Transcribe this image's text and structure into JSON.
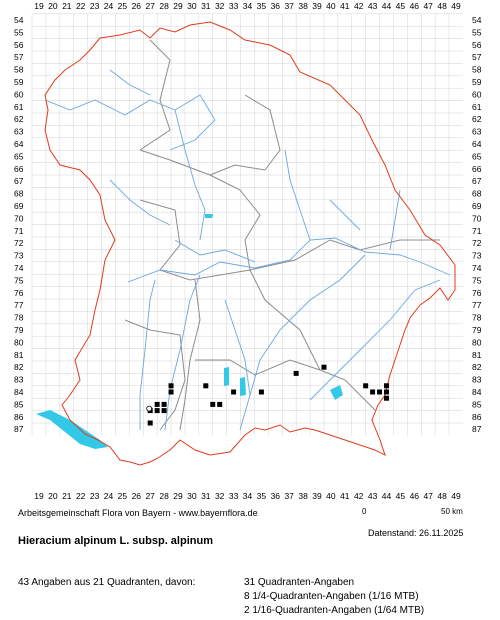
{
  "grid": {
    "top_labels": [
      "19",
      "20",
      "21",
      "22",
      "23",
      "24",
      "25",
      "26",
      "27",
      "28",
      "29",
      "30",
      "31",
      "32",
      "33",
      "34",
      "35",
      "36",
      "37",
      "38",
      "39",
      "40",
      "41",
      "42",
      "43",
      "44",
      "45",
      "46",
      "47",
      "48",
      "49"
    ],
    "left_labels": [
      "54",
      "55",
      "56",
      "57",
      "58",
      "59",
      "60",
      "61",
      "62",
      "63",
      "64",
      "65",
      "66",
      "67",
      "68",
      "69",
      "70",
      "71",
      "72",
      "73",
      "74",
      "75",
      "76",
      "77",
      "78",
      "79",
      "80",
      "81",
      "82",
      "83",
      "84",
      "85",
      "86",
      "87"
    ]
  },
  "colors": {
    "border": "#e03b1e",
    "districts": "#8c8c8c",
    "rivers": "#6aa7e0",
    "lakes": "#34c8e8",
    "grid": "#c8c8c8",
    "record": "#000000"
  },
  "records": {
    "filled": [
      [
        39.5,
        82
      ],
      [
        37.5,
        82.5
      ],
      [
        28.5,
        83.5
      ],
      [
        31,
        83.5
      ],
      [
        42.5,
        83.5
      ],
      [
        44,
        83.5
      ],
      [
        28.5,
        84
      ],
      [
        33,
        84
      ],
      [
        35,
        84
      ],
      [
        43,
        84
      ],
      [
        43.5,
        84
      ],
      [
        44,
        84
      ],
      [
        27.5,
        85
      ],
      [
        28,
        85
      ],
      [
        31.5,
        85
      ],
      [
        32,
        85
      ],
      [
        44,
        84.5
      ],
      [
        27,
        85.5
      ],
      [
        27.5,
        85.5
      ],
      [
        28,
        85.5
      ],
      [
        27,
        86.5
      ]
    ],
    "open": [
      [
        27,
        85.5
      ]
    ]
  },
  "credit": "Arbeitsgemeinschaft Flora von Bayern - www.bayernflora.de",
  "scale": {
    "start": "0",
    "end": "50 km"
  },
  "species": "Hieracium alpinum L. subsp. alpinum",
  "datestamp": "Datenstand: 26.11.2025",
  "summary": "43 Angaben aus 21 Quadranten, davon:",
  "quadrant_lines": [
    "31 Quadranten-Angaben",
    "8 1/4-Quadranten-Angaben (1/16 MTB)",
    "2 1/16-Quadranten-Angaben (1/64 MTB)"
  ]
}
